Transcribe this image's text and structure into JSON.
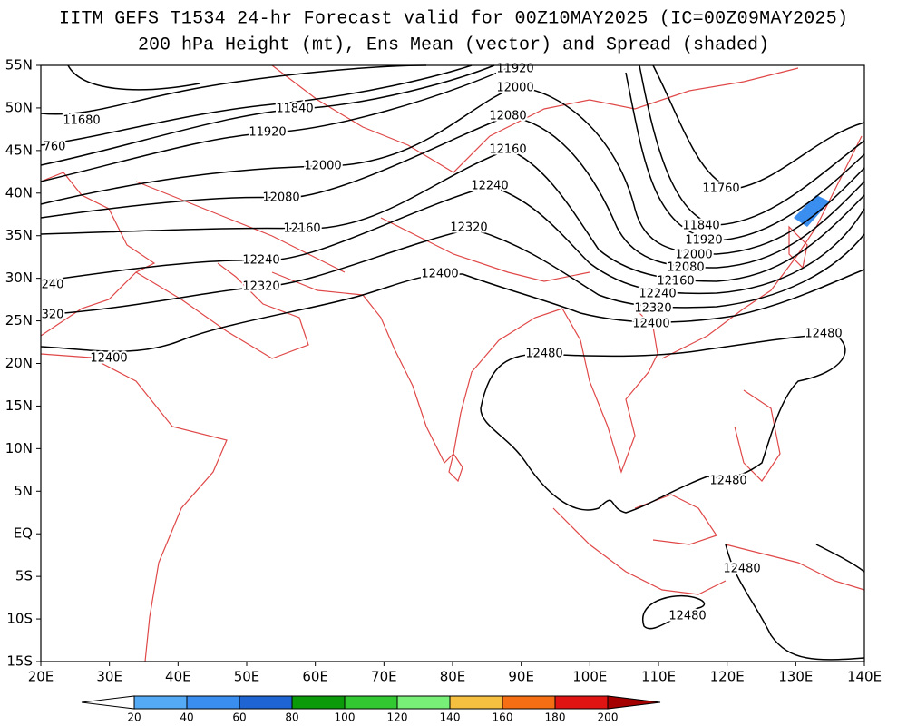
{
  "title": [
    "IITM GEFS T1534 24-hr Forecast valid for 00Z10MAY2025 (IC=00Z09MAY2025)",
    "200 hPa Height (mt), Ens Mean (vector) and Spread (shaded)"
  ],
  "lat_labels": [
    "55N",
    "50N",
    "45N",
    "40N",
    "35N",
    "30N",
    "25N",
    "20N",
    "15N",
    "10N",
    "5N",
    "EQ",
    "5S",
    "10S",
    "15S"
  ],
  "lon_labels": [
    "20E",
    "30E",
    "40E",
    "50E",
    "60E",
    "70E",
    "80E",
    "90E",
    "100E",
    "110E",
    "120E",
    "130E",
    "140E"
  ],
  "contour_labels": [
    "11920",
    "12000",
    "12080",
    "12160",
    "12240",
    "12320",
    "12400",
    "11840",
    "11920",
    "12000",
    "12080",
    "12160",
    "12240",
    "12320",
    "12400",
    "11680",
    "760",
    "240",
    "320",
    "11760",
    "11840",
    "11920",
    "12000",
    "12080",
    "12160",
    "12240",
    "12320",
    "12400",
    "12480",
    "12480",
    "12480",
    "12480",
    "12480"
  ],
  "colorbar": {
    "colors": [
      "#ffffff",
      "#55aaf5",
      "#3a8ef0",
      "#1e64d2",
      "#0a9a0a",
      "#32c832",
      "#78f078",
      "#f5c040",
      "#f56e14",
      "#e11414",
      "#a50000"
    ],
    "labels": [
      "20",
      "40",
      "60",
      "80",
      "100",
      "120",
      "140",
      "160",
      "180",
      "200"
    ]
  }
}
